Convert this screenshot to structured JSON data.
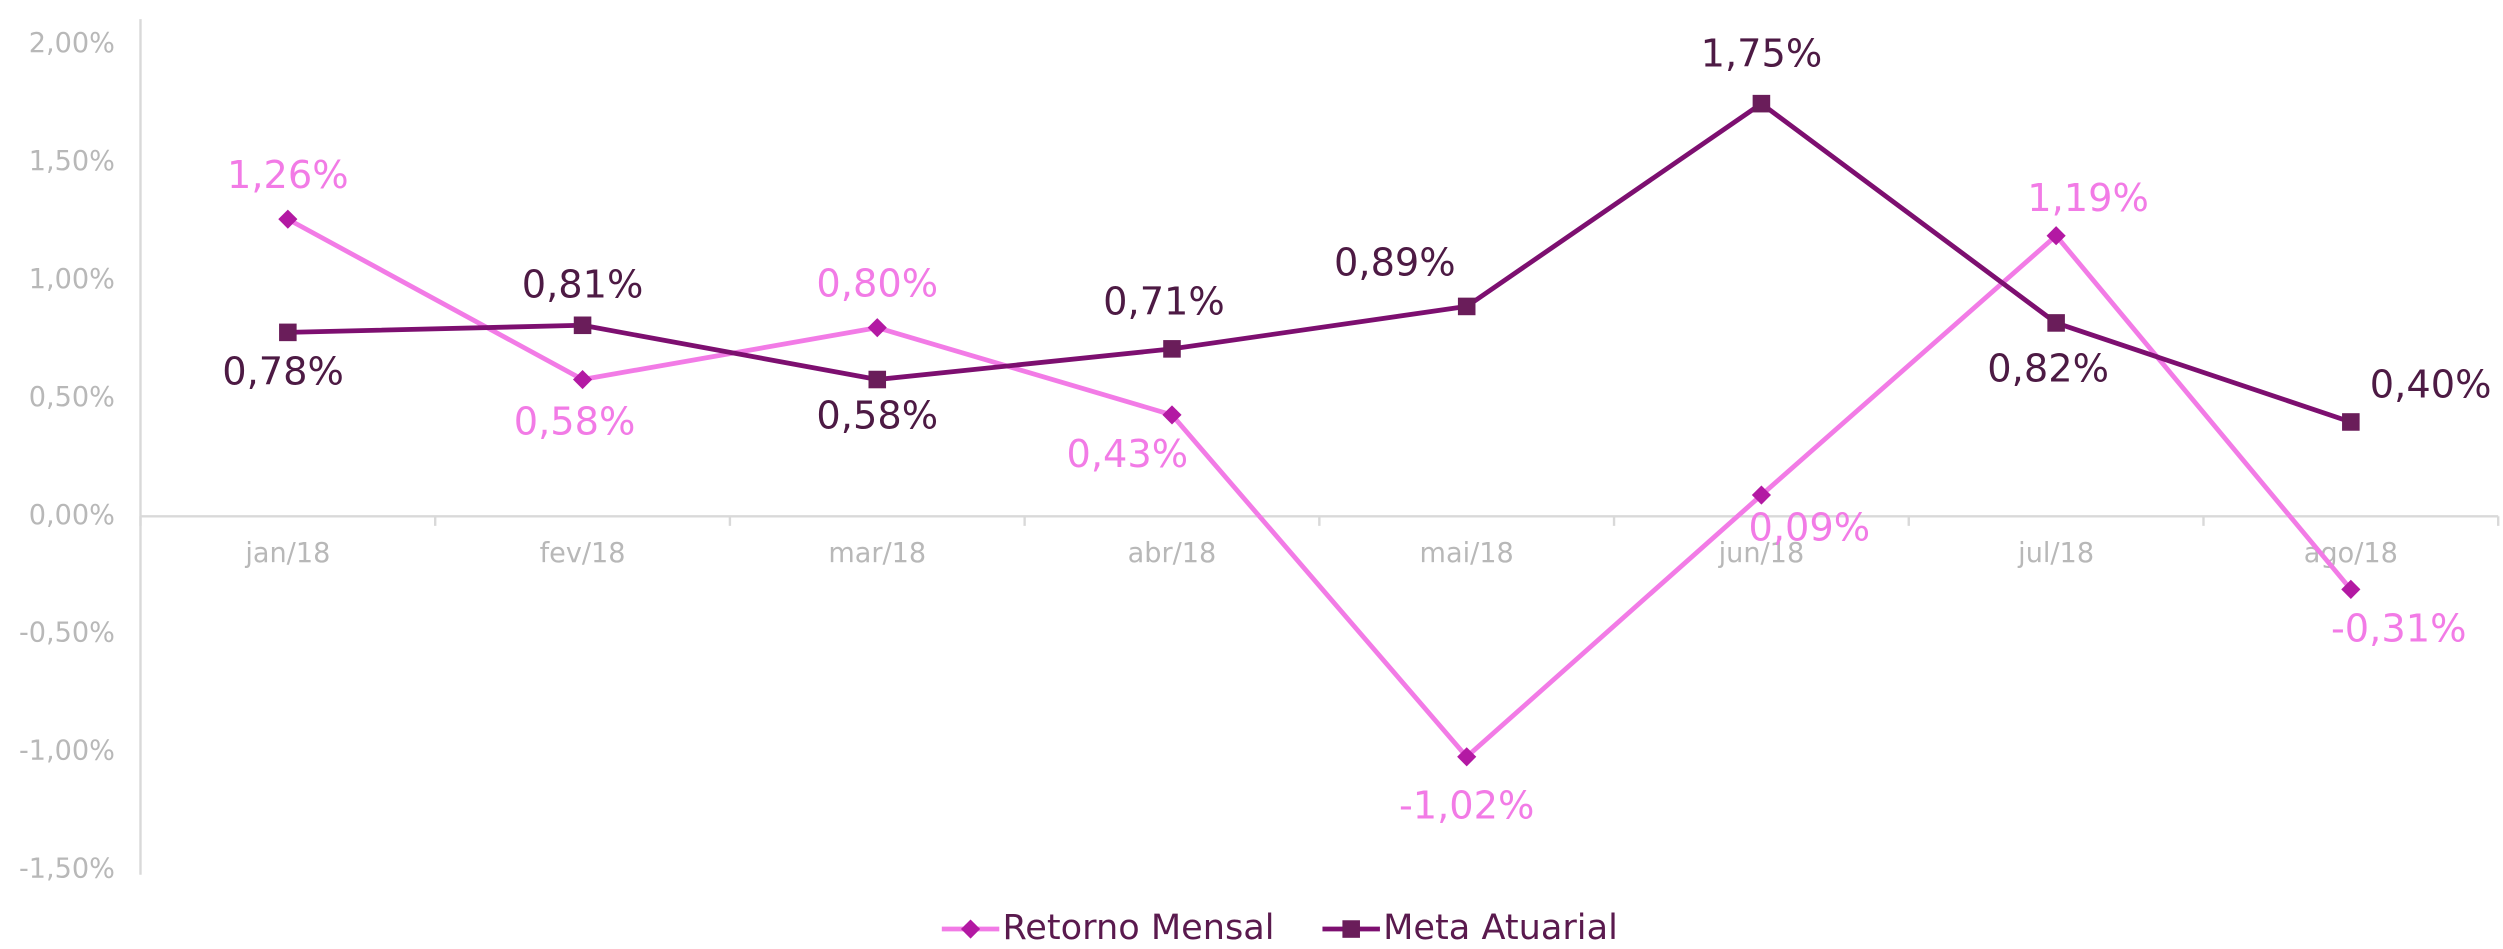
{
  "chart_data": {
    "type": "line",
    "categories": [
      "jan/18",
      "fev/18",
      "mar/18",
      "abr/18",
      "mai/18",
      "jun/18",
      "jul/18",
      "ago/18"
    ],
    "series": [
      {
        "name": "Retorno Mensal",
        "color": "#f27be6",
        "marker_color": "#b319a3",
        "marker": "diamond",
        "values": [
          1.26,
          0.58,
          0.8,
          0.43,
          -1.02,
          0.09,
          1.19,
          -0.31
        ],
        "value_labels": [
          "1,26%",
          "0,58%",
          "0,80%",
          "0,43%",
          "-1,02%",
          "0,09%",
          "1,19%",
          "-0,31%"
        ]
      },
      {
        "name": "Meta Atuarial",
        "color": "#7d0f70",
        "marker_color": "#6a1d5a",
        "marker": "square",
        "values": [
          0.78,
          0.81,
          0.58,
          0.71,
          0.89,
          1.75,
          0.82,
          0.4
        ],
        "value_labels": [
          "0,78%",
          "0,81%",
          "0,58%",
          "0,71%",
          "0,89%",
          "1,75%",
          "0,82%",
          "0,40%"
        ]
      }
    ],
    "ylim": [
      -1.5,
      2.0
    ],
    "yticks": [
      {
        "value": -1.5,
        "label": "-1,50%"
      },
      {
        "value": -1.0,
        "label": "-1,00%"
      },
      {
        "value": -0.5,
        "label": "-0,50%"
      },
      {
        "value": 0,
        "label": "0,00%"
      },
      {
        "value": 0.5,
        "label": "0,50%"
      },
      {
        "value": 1.0,
        "label": "1,00%"
      },
      {
        "value": 1.5,
        "label": "1,50%"
      },
      {
        "value": 2.0,
        "label": "2,00%"
      }
    ],
    "grid": false,
    "legend": "bottom"
  }
}
